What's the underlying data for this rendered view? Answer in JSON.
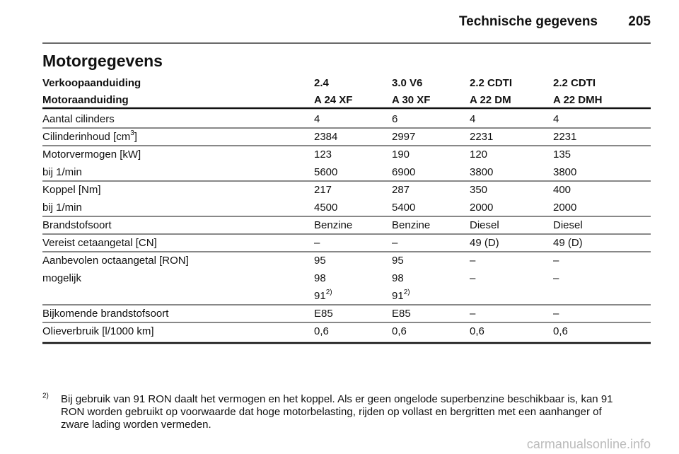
{
  "header": {
    "title": "Technische gegevens",
    "page": "205"
  },
  "section_title": "Motorgegevens",
  "table": {
    "head": [
      [
        "Verkoopaanduiding",
        "2.4",
        "3.0 V6",
        "2.2 CDTI",
        "2.2 CDTI"
      ],
      [
        "Motoraanduiding",
        "A 24 XF",
        "A 30 XF",
        "A 22 DM",
        "A 22 DMH"
      ]
    ],
    "groups": [
      [
        [
          "Aantal cilinders",
          "4",
          "6",
          "4",
          "4"
        ]
      ],
      [
        [
          {
            "text": "Cilinderinhoud [cm",
            "sup": "3",
            "tail": "]"
          },
          "2384",
          "2997",
          "2231",
          "2231"
        ]
      ],
      [
        [
          "Motorvermogen [kW]",
          "123",
          "190",
          "120",
          "135"
        ],
        [
          "bij 1/min",
          "5600",
          "6900",
          "3800",
          "3800"
        ]
      ],
      [
        [
          "Koppel [Nm]",
          "217",
          "287",
          "350",
          "400"
        ],
        [
          "bij 1/min",
          "4500",
          "5400",
          "2000",
          "2000"
        ]
      ],
      [
        [
          "Brandstofsoort",
          "Benzine",
          "Benzine",
          "Diesel",
          "Diesel"
        ]
      ],
      [
        [
          "Vereist cetaangetal [CN]",
          "–",
          "–",
          "49 (D)",
          "49 (D)"
        ]
      ],
      [
        [
          "Aanbevolen octaangetal [RON]",
          "95",
          "95",
          "–",
          "–"
        ],
        [
          "mogelijk",
          "98",
          "98",
          "–",
          "–"
        ],
        [
          null,
          {
            "text": "91",
            "sup": "2)"
          },
          {
            "text": "91",
            "sup": "2)"
          },
          null,
          null
        ]
      ],
      [
        [
          "Bijkomende brandstofsoort",
          "E85",
          "E85",
          "–",
          "–"
        ]
      ],
      [
        [
          "Olieverbruik [l/1000 km]",
          "0,6",
          "0,6",
          "0,6",
          "0,6"
        ]
      ]
    ]
  },
  "footnote": {
    "marker": "2)",
    "lines": [
      "Bij gebruik van 91 RON daalt het vermogen en het koppel. Als er geen ongelode superbenzine beschikbaar is, kan 91",
      "RON worden gebruikt op voorwaarde dat hoge motorbelasting, rijden op vollast en bergritten met een aanhanger of",
      "zware lading worden vermeden."
    ]
  },
  "watermark": "carmanualsonline.info"
}
